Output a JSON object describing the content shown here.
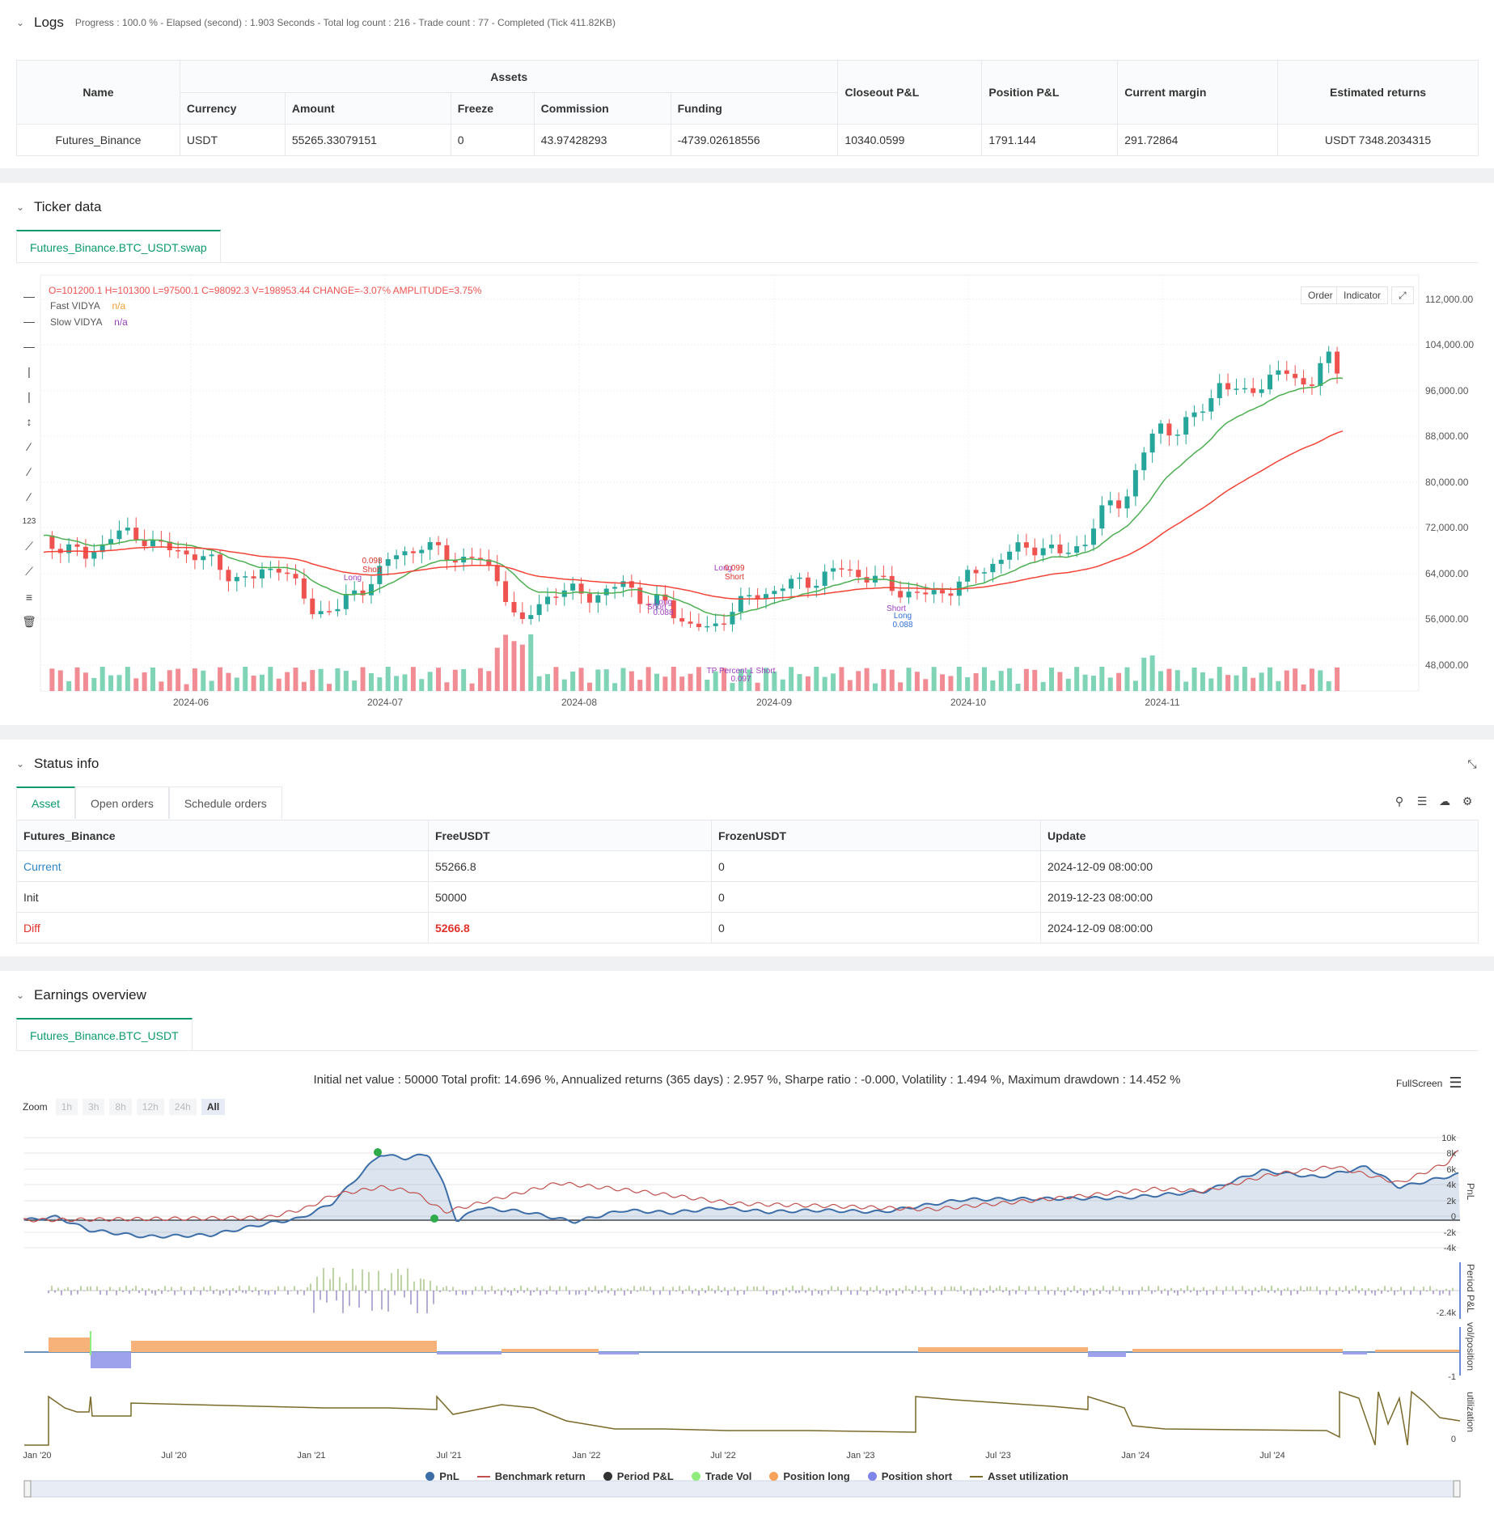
{
  "logs": {
    "title": "Logs",
    "info": "Progress : 100.0 % - Elapsed (second) : 1.903  Seconds - Total log count : 216 - Trade count : 77 - Completed (Tick 411.82KB)",
    "table": {
      "h_name": "Name",
      "h_assets": "Assets",
      "h_currency": "Currency",
      "h_amount": "Amount",
      "h_freeze": "Freeze",
      "h_commission": "Commission",
      "h_funding": "Funding",
      "h_closeout": "Closeout P&L",
      "h_position": "Position P&L",
      "h_margin": "Current margin",
      "h_returns": "Estimated returns",
      "row": {
        "name": "Futures_Binance",
        "currency": "USDT",
        "amount": "55265.33079151",
        "freeze": "0",
        "commission": "43.97428293",
        "funding": "-4739.02618556",
        "closeout": "10340.0599",
        "position": "1791.144",
        "margin": "291.72864",
        "returns": "USDT 7348.2034315"
      }
    }
  },
  "ticker": {
    "title": "Ticker data",
    "tab": "Futures_Binance.BTC_USDT.swap",
    "ohlc": "O=101200.1 H=101300 L=97500.1 C=98092.3 V=198953.44 CHANGE=-3.07% AMPLITUDE=3.75%",
    "fast_label": "Fast VIDYA",
    "fast_val": "n/a",
    "slow_label": "Slow VIDYA",
    "slow_val": "n/a",
    "btn_order": "Order",
    "btn_indicator": "Indicator",
    "y_ticks": [
      "112,000.00",
      "104,000.00",
      "96,000.00",
      "88,000.00",
      "80,000.00",
      "72,000.00",
      "64,000.00",
      "56,000.00",
      "48,000.00"
    ],
    "x_ticks": [
      "2024-06",
      "2024-07",
      "2024-08",
      "2024-09",
      "2024-10",
      "2024-11"
    ],
    "annotations": {
      "a1_qty": "0.098",
      "a1_short": "Short",
      "a1_long": "Long",
      "a2_short": "Short",
      "a2_long": "Long",
      "a2_qty": "0.088",
      "a3_long": "Long",
      "a3_qty": "0.099",
      "a3_short": "Short",
      "a4_tp": "TP Percent 1 Short",
      "a4_qty": "0.097",
      "a5_short": "Short",
      "a5_long": "Long",
      "a5_qty": "0.088"
    },
    "colors": {
      "up": "#26a69a",
      "down": "#ef5350",
      "fast": "#4caf50",
      "slow": "#f44336"
    }
  },
  "status": {
    "title": "Status info",
    "tabs": [
      "Asset",
      "Open orders",
      "Schedule orders"
    ],
    "headers": [
      "Futures_Binance",
      "FreeUSDT",
      "FrozenUSDT",
      "Update"
    ],
    "rows": [
      {
        "label": "Current",
        "free": "55266.8",
        "frozen": "0",
        "update": "2024-12-09 08:00:00"
      },
      {
        "label": "Init",
        "free": "50000",
        "frozen": "0",
        "update": "2019-12-23 08:00:00"
      },
      {
        "label": "Diff",
        "free": "5266.8",
        "frozen": "0",
        "update": "2024-12-09 08:00:00"
      }
    ]
  },
  "earnings": {
    "title": "Earnings overview",
    "tab": "Futures_Binance.BTC_USDT",
    "summary": "Initial net value : 50000 Total profit: 14.696 %, Annualized returns (365 days) : 2.957 %, Sharpe ratio : -0.000, Volatility : 1.494 %, Maximum drawdown : 14.452 %",
    "fullscreen": "FullScreen",
    "zoom_label": "Zoom",
    "zoom": [
      "1h",
      "3h",
      "8h",
      "12h",
      "24h",
      "All"
    ],
    "pnl_ticks": [
      "10k",
      "8k",
      "6k",
      "4k",
      "2k",
      "0",
      "-2k",
      "-4k"
    ],
    "pnl_axis": "PnL",
    "period_axis": "Period P&L",
    "period_tick": "-2.4k",
    "vol_axis": "vol/position",
    "vol_tick": "-1",
    "util_axis": "utilization",
    "util_tick": "0",
    "x_ticks": [
      "Jan '20",
      "Jul '20",
      "Jan '21",
      "Jul '21",
      "Jan '22",
      "Jul '22",
      "Jan '23",
      "Jul '23",
      "Jan '24",
      "Jul '24"
    ],
    "legend": [
      {
        "name": "PnL",
        "color": "#3d6ea8",
        "shape": "dot"
      },
      {
        "name": "Benchmark return",
        "color": "#c0504d",
        "shape": "line"
      },
      {
        "name": "Period P&L",
        "color": "#333333",
        "shape": "dot"
      },
      {
        "name": "Trade Vol",
        "color": "#90ed7d",
        "shape": "dot"
      },
      {
        "name": "Position long",
        "color": "#f7a35c",
        "shape": "dot"
      },
      {
        "name": "Position short",
        "color": "#8085e9",
        "shape": "dot"
      },
      {
        "name": "Asset utilization",
        "color": "#7a6a2a",
        "shape": "line"
      }
    ]
  }
}
